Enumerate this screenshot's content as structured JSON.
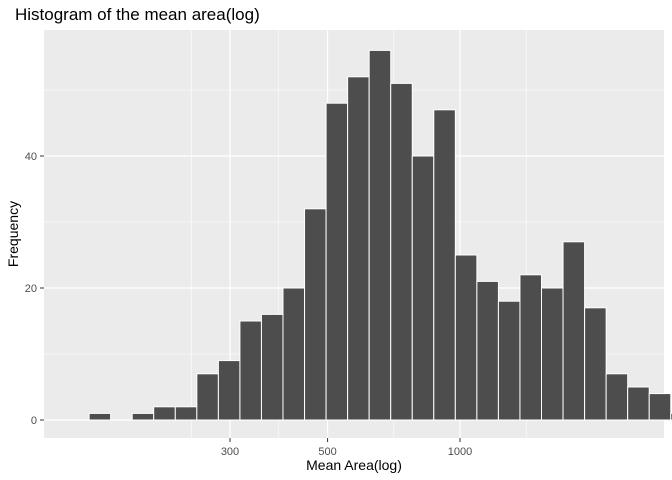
{
  "chart_data": {
    "type": "bar",
    "title": "Histogram of the mean area(log)",
    "xlabel": "Mean Area(log)",
    "ylabel": "Frequency",
    "x_scale": "log10",
    "x_ticks": [
      300,
      500,
      1000
    ],
    "y_ticks": [
      0,
      20,
      40
    ],
    "ylim": [
      0,
      58
    ],
    "grid": true,
    "bar_fill": "#4d4d4d",
    "bar_outline": "#ffffff",
    "panel_background": "#ebebeb",
    "bins": [
      {
        "x0": 143.5,
        "x1": 160.6,
        "count": 1
      },
      {
        "x0": 160.6,
        "x1": 179.8,
        "count": 0
      },
      {
        "x0": 179.8,
        "x1": 201.2,
        "count": 1
      },
      {
        "x0": 201.2,
        "x1": 225.3,
        "count": 2
      },
      {
        "x0": 225.3,
        "x1": 252.2,
        "count": 2
      },
      {
        "x0": 252.2,
        "x1": 282.3,
        "count": 7
      },
      {
        "x0": 282.3,
        "x1": 316.0,
        "count": 9
      },
      {
        "x0": 316.0,
        "x1": 353.7,
        "count": 15
      },
      {
        "x0": 353.7,
        "x1": 395.9,
        "count": 16
      },
      {
        "x0": 395.9,
        "x1": 443.2,
        "count": 20
      },
      {
        "x0": 443.2,
        "x1": 496.1,
        "count": 32
      },
      {
        "x0": 496.1,
        "x1": 555.3,
        "count": 48
      },
      {
        "x0": 555.3,
        "x1": 621.6,
        "count": 52
      },
      {
        "x0": 621.6,
        "x1": 695.8,
        "count": 56
      },
      {
        "x0": 695.8,
        "x1": 778.9,
        "count": 51
      },
      {
        "x0": 778.9,
        "x1": 871.8,
        "count": 40
      },
      {
        "x0": 871.8,
        "x1": 975.9,
        "count": 47
      },
      {
        "x0": 975.9,
        "x1": 1092.4,
        "count": 25
      },
      {
        "x0": 1092.4,
        "x1": 1222.8,
        "count": 21
      },
      {
        "x0": 1222.8,
        "x1": 1368.7,
        "count": 18
      },
      {
        "x0": 1368.7,
        "x1": 1532.1,
        "count": 22
      },
      {
        "x0": 1532.1,
        "x1": 1715.0,
        "count": 20
      },
      {
        "x0": 1715.0,
        "x1": 1919.8,
        "count": 27
      },
      {
        "x0": 1919.8,
        "x1": 2149.0,
        "count": 17
      },
      {
        "x0": 2149.0,
        "x1": 2405.5,
        "count": 7
      },
      {
        "x0": 2405.5,
        "x1": 2692.6,
        "count": 5
      },
      {
        "x0": 2692.6,
        "x1": 3014.0,
        "count": 4
      },
      {
        "x0": 3014.0,
        "x1": 3373.8,
        "count": 1
      },
      {
        "x0": 3373.8,
        "x1": 3776.6,
        "count": 1
      },
      {
        "x0": 3776.6,
        "x1": 4227.4,
        "count": 2
      }
    ]
  }
}
